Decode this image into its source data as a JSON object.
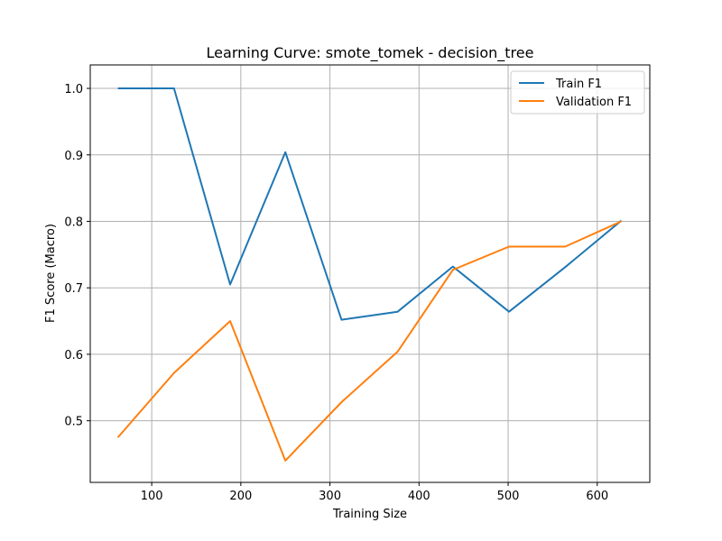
{
  "chart_data": {
    "type": "line",
    "title": "Learning Curve: smote_tomek - decision_tree",
    "xlabel": "Training Size",
    "ylabel": "F1 Score (Macro)",
    "xlim": [
      31,
      659
    ],
    "ylim": [
      0.4073,
      1.0353
    ],
    "xticks": [
      100,
      200,
      300,
      400,
      500,
      600
    ],
    "xtick_labels": [
      "100",
      "200",
      "300",
      "400",
      "500",
      "600"
    ],
    "yticks": [
      0.5,
      0.6,
      0.7,
      0.8,
      0.9,
      1.0
    ],
    "ytick_labels": [
      "0.5",
      "0.6",
      "0.7",
      "0.8",
      "0.9",
      "1.0"
    ],
    "grid": true,
    "legend_position": "top-right",
    "x": [
      62,
      125,
      188,
      250,
      313,
      376,
      438,
      501,
      564,
      627
    ],
    "series": [
      {
        "name": "Train F1",
        "color": "#1f77b4",
        "values": [
          1.0,
          1.0,
          0.705,
          0.904,
          0.652,
          0.664,
          0.732,
          0.664,
          0.731,
          0.801
        ]
      },
      {
        "name": "Validation F1",
        "color": "#ff7f0e",
        "values": [
          0.475,
          0.572,
          0.65,
          0.44,
          0.528,
          0.604,
          0.727,
          0.762,
          0.762,
          0.8
        ]
      }
    ]
  }
}
